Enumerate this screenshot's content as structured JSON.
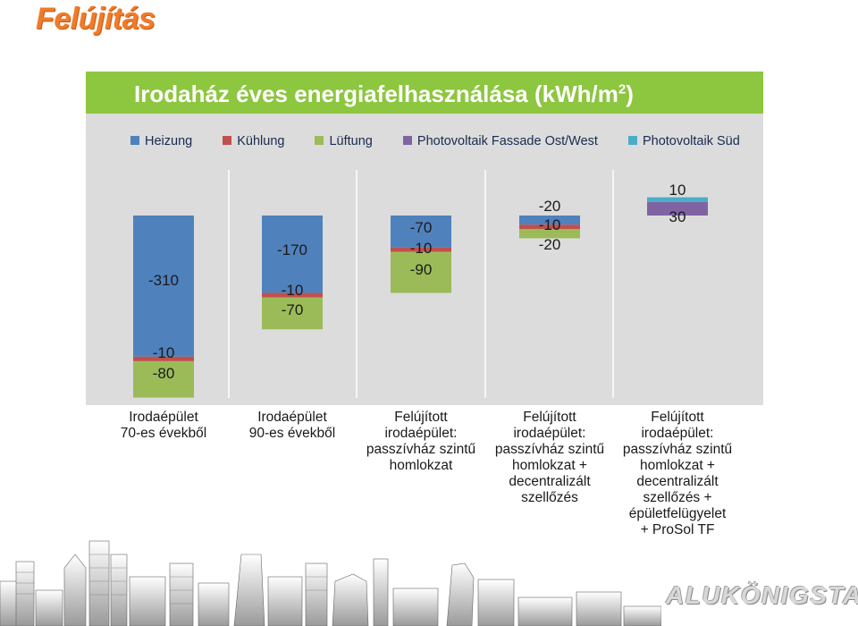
{
  "page": {
    "title": "Felújítás",
    "logo_text": "ALUKÖNIGSTAHL"
  },
  "chart_data": {
    "type": "bar",
    "stacked": true,
    "title": "Irodaház éves energiafelhasználása (kWh/m",
    "title_superscript": "2",
    "title_suffix": ")",
    "legend_position": "top",
    "grid": false,
    "categories": [
      "Irodaépület\n70-es évekből",
      "Irodaépület\n90-es évekből",
      "Felújított\nirodaépület:\npasszívház szintű\nhomlokzat",
      "Felújított\nirodaépület:\npasszívház szintű\nhomlokzat    +\ndecentralizált\nszellőzés",
      "Felújított\nirodaépület:\npasszívház szintű\nhomlokzat    +\ndecentralizált\nszellőzés   +\népületfelügyelet\n+ ProSol TF"
    ],
    "series": [
      {
        "name": "Heizung",
        "color": "#4f81bd",
        "values": [
          -310,
          -170,
          -70,
          -20,
          0
        ],
        "labels": [
          "-310",
          "-170",
          "-70",
          "-20",
          ""
        ]
      },
      {
        "name": "Kühlung",
        "color": "#c0504d",
        "values": [
          -10,
          -10,
          -10,
          -10,
          0
        ],
        "labels": [
          "-10",
          "-10",
          "-10",
          "-10",
          ""
        ]
      },
      {
        "name": "Lüftung",
        "color": "#9bbb59",
        "values": [
          -80,
          -70,
          -90,
          -20,
          0
        ],
        "labels": [
          "-80",
          "-70",
          "-90",
          "-20",
          ""
        ]
      },
      {
        "name": "Photovoltaik Fassade Ost/West",
        "color": "#8064a2",
        "values": [
          0,
          0,
          0,
          0,
          30
        ],
        "labels": [
          "",
          "",
          "",
          "",
          "30"
        ]
      },
      {
        "name": "Photovoltaik Süd",
        "color": "#4bacc6",
        "values": [
          0,
          0,
          0,
          0,
          10
        ],
        "labels": [
          "",
          "",
          "",
          "",
          "10"
        ]
      }
    ]
  }
}
